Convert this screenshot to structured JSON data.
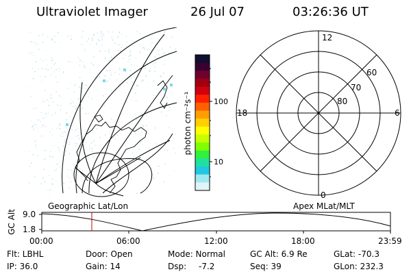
{
  "header": {
    "instrument": "Ultraviolet Imager",
    "date": "26 Jul 07",
    "time": "03:26:36 UT"
  },
  "colorbar": {
    "unit_label": "photon cm⁻²s⁻¹",
    "ticks": [
      "100",
      "10"
    ],
    "colors": [
      "#101030",
      "#3a0030",
      "#700030",
      "#a00010",
      "#d00010",
      "#ff2000",
      "#ff6000",
      "#ff9e00",
      "#ffd000",
      "#ffff00",
      "#c8ff00",
      "#80ff00",
      "#30f040",
      "#20e0a0",
      "#20c8e0",
      "#a0e8f0",
      "#e0f4f8"
    ]
  },
  "left_panel": {
    "label": "Geographic Lat/Lon"
  },
  "right_panel": {
    "label": "Apex MLat/MLT",
    "mlt_labels": {
      "top": "12",
      "left": "18",
      "right": "6",
      "bottom": "0"
    },
    "lat_labels": [
      "60",
      "70",
      "80"
    ]
  },
  "timeline": {
    "ylabel": "GC Alt",
    "y_ticks": [
      "9.0",
      "1.8"
    ],
    "x_ticks": [
      "00:00",
      "06:00",
      "12:00",
      "18:00",
      "23:59"
    ],
    "current_time_fraction": 0.1435
  },
  "info": {
    "flt": "Flt: LBHL",
    "door": "Door: Open",
    "mode": "Mode: Normal",
    "gcalt": "GC Alt: 6.9 Re",
    "glat": "GLat: -70.3",
    "ip": "IP: 36.0",
    "gain": "Gain: 14",
    "dsp_label": "Dsp:",
    "dsp_value": "-7.2",
    "seq": "Seq: 39",
    "glon": "GLon: 232.3"
  }
}
